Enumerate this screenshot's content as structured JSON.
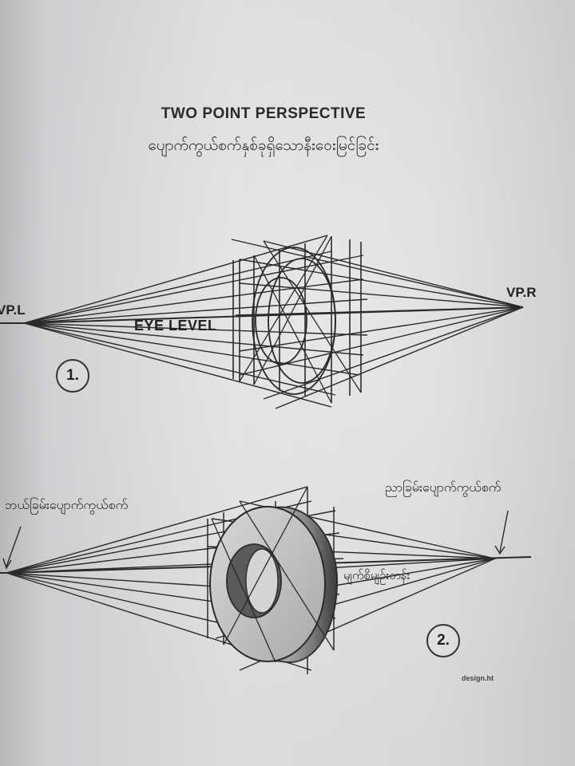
{
  "title_en": "TWO POINT PERSPECTIVE",
  "title_my": "ပျောက်ကွယ်စက်နှစ်ခုရှိသောနီးဝေးမြင်ခြင်း",
  "diagram1": {
    "vp_left": "VP.L",
    "vp_right": "VP.R",
    "horizon_label": "EYE LEVEL",
    "number": "1."
  },
  "diagram2": {
    "left_vp_label": "ဘယ်ခြမ်းပျောက်ကွယ်စက်",
    "right_vp_label": "ညာခြမ်းပျောက်ကွယ်စက်",
    "horizon_label": "မျက်စိမျဉ်းတန်း",
    "number": "2."
  },
  "credit": "design.ht",
  "colors": {
    "ink": "#2a2a2a",
    "paper": "#d9d9db",
    "shade": "#5a5a5c"
  }
}
